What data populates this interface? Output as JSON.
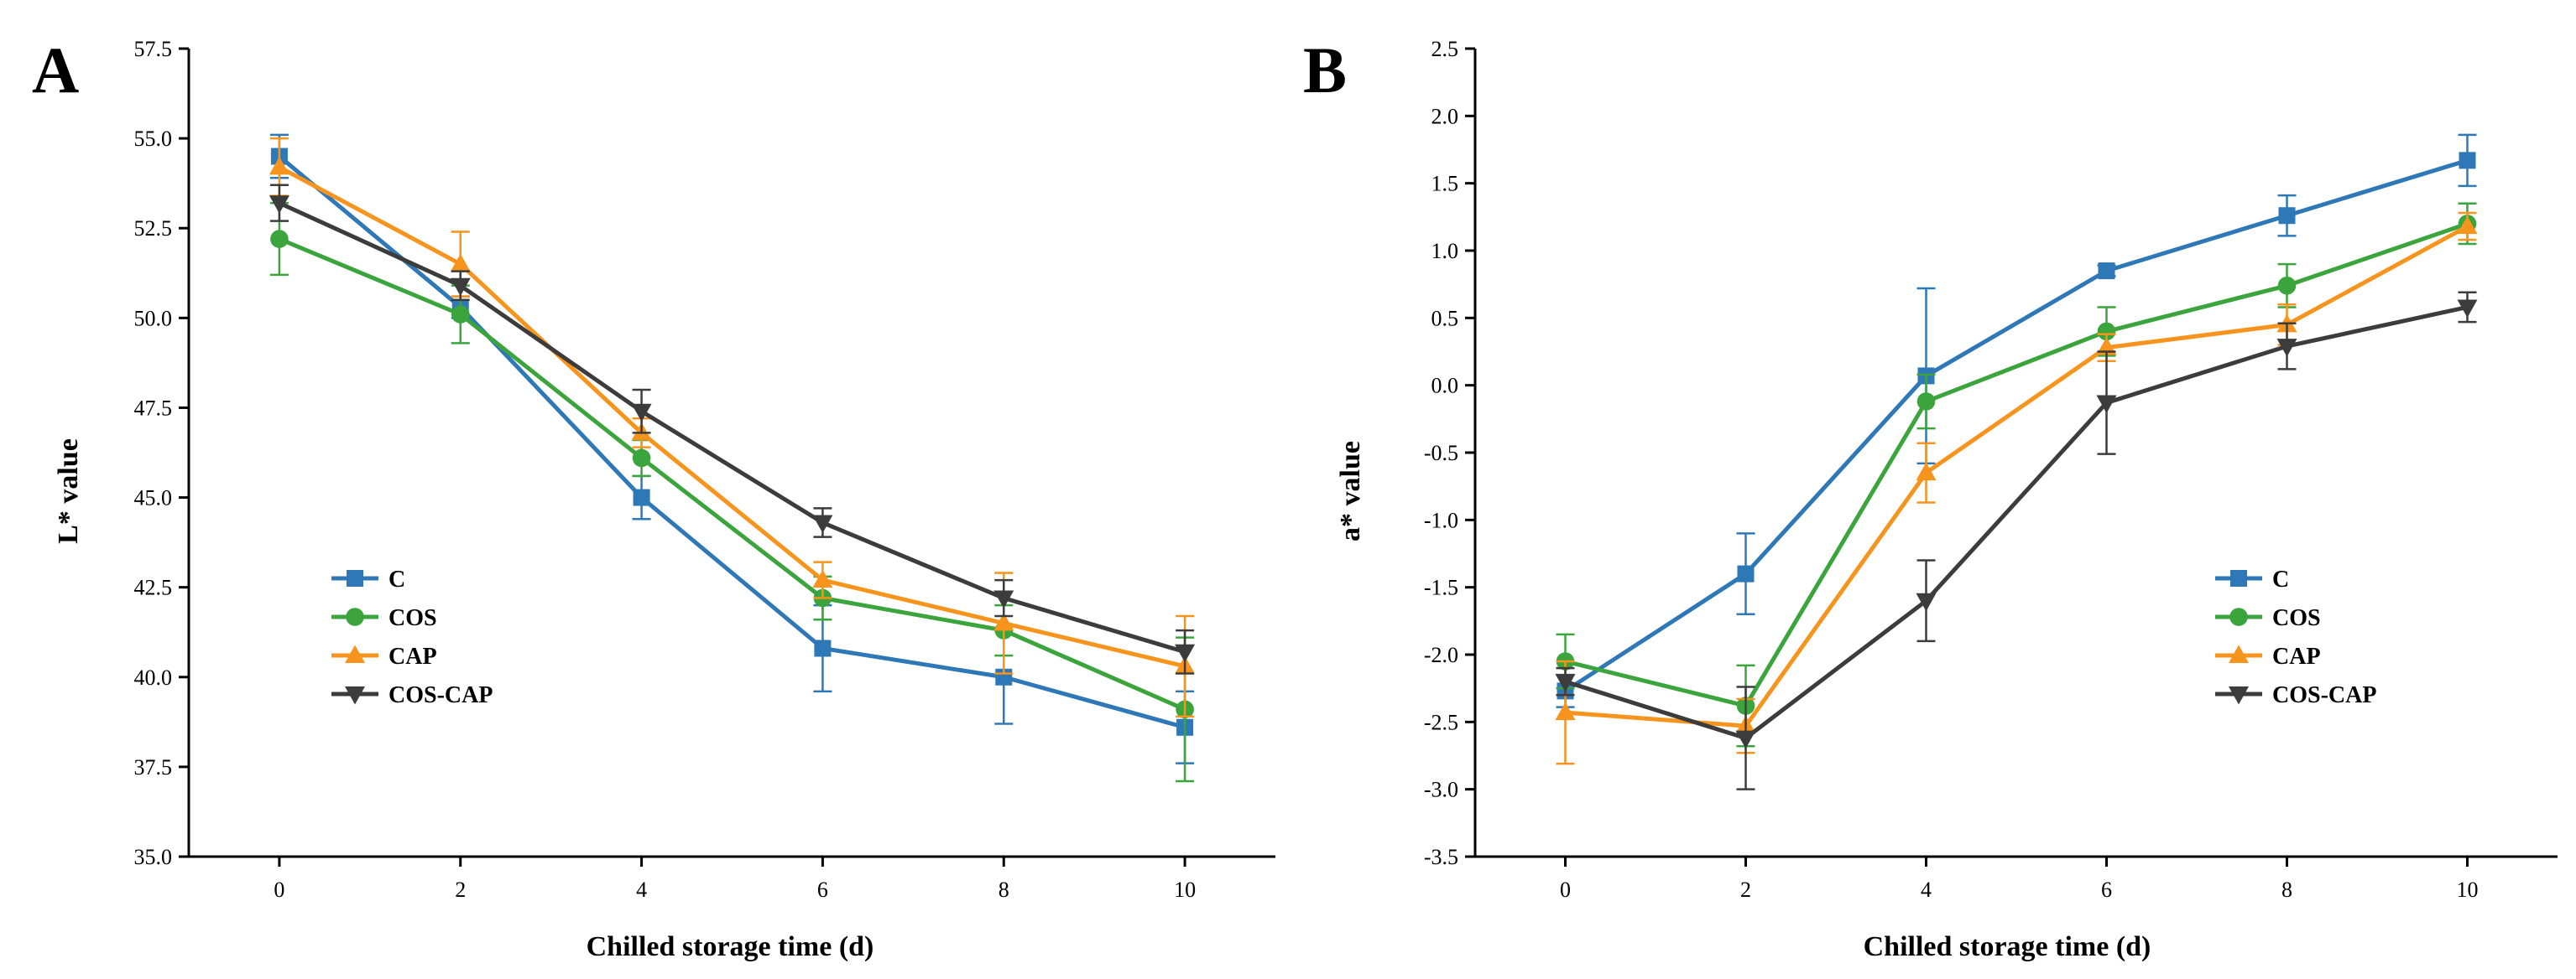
{
  "figure": {
    "colors": {
      "C": "#2E78B7",
      "COS": "#3BA43C",
      "CAP": "#F7941D",
      "COS-CAP": "#3C3C3C"
    },
    "markers": {
      "C": "square",
      "COS": "circle",
      "CAP": "triangle-up",
      "COS-CAP": "triangle-down"
    }
  },
  "chart_data": [
    {
      "panel": "A",
      "type": "line",
      "title": "",
      "xlabel": "Chilled storage time (d)",
      "ylabel": "L* value",
      "x": [
        0,
        2,
        4,
        6,
        8,
        10
      ],
      "xticks": [
        "0",
        "2",
        "4",
        "6",
        "8",
        "10"
      ],
      "yticks": [
        "35.0",
        "37.5",
        "40.0",
        "42.5",
        "45.0",
        "47.5",
        "50.0",
        "52.5",
        "55.0",
        "57.5"
      ],
      "ylim": [
        35.0,
        57.5
      ],
      "grid": false,
      "legend": "lower-left",
      "series": [
        {
          "name": "C",
          "values": [
            54.5,
            50.3,
            45.0,
            40.8,
            40.0,
            38.6
          ],
          "errors": [
            0.6,
            0.3,
            0.6,
            1.2,
            1.3,
            1.0
          ]
        },
        {
          "name": "COS",
          "values": [
            52.2,
            50.1,
            46.1,
            42.2,
            41.3,
            39.1
          ],
          "errors": [
            1.0,
            0.8,
            0.5,
            0.6,
            0.7,
            2.0
          ]
        },
        {
          "name": "CAP",
          "values": [
            54.2,
            51.5,
            46.8,
            42.7,
            41.5,
            40.3
          ],
          "errors": [
            0.8,
            0.9,
            0.4,
            0.5,
            1.4,
            1.4
          ]
        },
        {
          "name": "COS-CAP",
          "values": [
            53.2,
            50.9,
            47.4,
            44.3,
            42.2,
            40.7
          ],
          "errors": [
            0.5,
            0.4,
            0.6,
            0.4,
            0.5,
            0.6
          ]
        }
      ]
    },
    {
      "panel": "B",
      "type": "line",
      "title": "",
      "xlabel": "Chilled storage time (d)",
      "ylabel": "a* value",
      "x": [
        0,
        2,
        4,
        6,
        8,
        10
      ],
      "xticks": [
        "0",
        "2",
        "4",
        "6",
        "8",
        "10"
      ],
      "yticks": [
        "-3.5",
        "-3.0",
        "-2.5",
        "-2.0",
        "-1.5",
        "-1.0",
        "-0.5",
        "0.0",
        "0.5",
        "1.0",
        "1.5",
        "2.0",
        "2.5"
      ],
      "ylim": [
        -3.5,
        2.5
      ],
      "grid": false,
      "legend": "lower-right",
      "series": [
        {
          "name": "C",
          "values": [
            -2.27,
            -1.4,
            0.07,
            0.85,
            1.26,
            1.67
          ],
          "errors": [
            0.12,
            0.3,
            0.65,
            0.04,
            0.15,
            0.19
          ]
        },
        {
          "name": "COS",
          "values": [
            -2.05,
            -2.38,
            -0.12,
            0.4,
            0.74,
            1.2
          ],
          "errors": [
            0.2,
            0.3,
            0.2,
            0.18,
            0.16,
            0.15
          ]
        },
        {
          "name": "CAP",
          "values": [
            -2.43,
            -2.53,
            -0.65,
            0.28,
            0.45,
            1.18
          ],
          "errors": [
            0.38,
            0.2,
            0.22,
            0.1,
            0.15,
            0.1
          ]
        },
        {
          "name": "COS-CAP",
          "values": [
            -2.2,
            -2.62,
            -1.6,
            -0.13,
            0.29,
            0.58
          ],
          "errors": [
            0.1,
            0.38,
            0.3,
            0.38,
            0.17,
            0.11
          ]
        }
      ]
    }
  ]
}
